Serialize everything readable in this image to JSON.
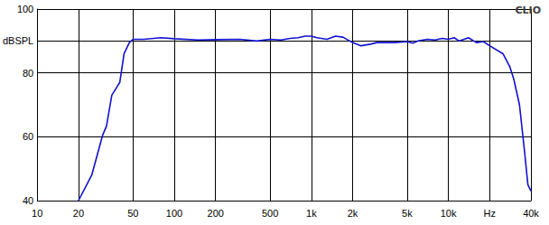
{
  "chart_data": {
    "type": "line",
    "title": "CLIO",
    "log": "x",
    "grid": true,
    "color": "#1010d0",
    "x": [
      20,
      25,
      30,
      32,
      35,
      38,
      40,
      43,
      47,
      50,
      60,
      80,
      100,
      150,
      200,
      300,
      400,
      500,
      600,
      700,
      800,
      900,
      1000,
      1100,
      1300,
      1500,
      1700,
      2000,
      2300,
      2700,
      3000,
      4000,
      5000,
      5500,
      6000,
      7000,
      8000,
      9000,
      10000,
      11000,
      12000,
      14000,
      16000,
      18000,
      20000,
      25000,
      28000,
      30000,
      33000,
      36000,
      38000,
      40000
    ],
    "values": [
      40,
      48,
      60.5,
      63.3,
      73,
      75.5,
      77,
      86,
      89.5,
      90.5,
      90.5,
      91,
      90.7,
      90.3,
      90.4,
      90.5,
      90,
      90.5,
      90.3,
      90.8,
      91,
      91.5,
      91.5,
      91,
      90.5,
      91.5,
      91.2,
      89.5,
      88.5,
      89,
      89.5,
      89.5,
      89.8,
      89.3,
      90,
      90.5,
      90.3,
      90.8,
      90.5,
      91,
      90,
      91,
      89.5,
      89.8,
      88.5,
      86,
      82,
      78,
      70,
      55,
      45,
      43
    ],
    "xlim": [
      10,
      40000
    ],
    "xticks": [
      10,
      20,
      50,
      100,
      200,
      500,
      {
        "value": 1000,
        "label": "1k"
      },
      {
        "value": 2000,
        "label": "2k"
      },
      {
        "value": 5000,
        "label": "5k"
      },
      {
        "value": 10000,
        "label": "10k"
      },
      {
        "value": 20000,
        "label": "Hz"
      },
      {
        "value": 40000,
        "label": "40k"
      }
    ],
    "ylim": [
      40,
      100
    ],
    "yticks": [
      40,
      60,
      80,
      {
        "value": 90,
        "label": "dBSPL"
      },
      100
    ]
  }
}
